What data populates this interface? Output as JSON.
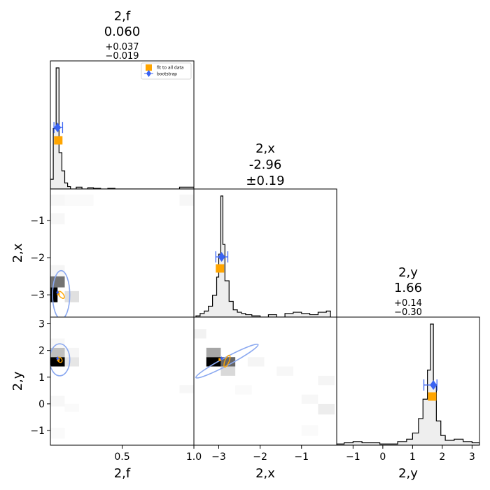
{
  "chart_data": {
    "type": "corner",
    "parameters": [
      "2,f",
      "2,x",
      "2,y"
    ],
    "ranges": {
      "2,f": [
        0.0,
        1.0
      ],
      "2,x": [
        -3.6,
        -0.15
      ],
      "2,y": [
        -1.55,
        3.25
      ]
    },
    "ticks": {
      "2,f": [
        "0.5",
        "1.0"
      ],
      "2,x": [
        "−3",
        "−2",
        "−1"
      ],
      "2,y": [
        "−1",
        "0",
        "1",
        "2",
        "3"
      ]
    },
    "marginal_titles": [
      {
        "param": "2,f",
        "name": "2,f",
        "value": "0.060",
        "plus": "+0.037",
        "minus": "−0.019"
      },
      {
        "param": "2,x",
        "name": "2,x",
        "value": "-2.96",
        "sym": "±0.19"
      },
      {
        "param": "2,y",
        "name": "2,y",
        "value": "1.66",
        "plus": "+0.14",
        "minus": "−0.30"
      }
    ],
    "legend": {
      "placement": "top-right of top-left panel",
      "entries": [
        "fit to all data",
        "bootstrap"
      ]
    },
    "colors": {
      "fit": "#FFA500",
      "bootstrap": "#3A63F2",
      "ellipse": "#8AA8F0",
      "hist_fill": "#EEEEEE"
    },
    "fit_point": {
      "2,f": 0.055,
      "2,x": -2.97,
      "2,y": 1.66
    },
    "bootstrap_point": {
      "2,f": 0.05,
      "2,x": -2.93,
      "2,y": 1.7
    },
    "bootstrap_err": {
      "2,f": [
        0.025,
        0.085
      ],
      "2,x": [
        -3.07,
        -2.78
      ],
      "2,y": [
        1.38,
        1.82
      ]
    },
    "marginals": {
      "2,f": {
        "bins": [
          0.0,
          0.02,
          0.04,
          0.06,
          0.08,
          0.1,
          0.12,
          0.14,
          0.18,
          0.22,
          0.26,
          0.3,
          0.35,
          0.4,
          0.45,
          0.5,
          0.9,
          1.0
        ],
        "counts": [
          0.08,
          0.5,
          1.0,
          0.3,
          0.15,
          0.05,
          0.02,
          0.0,
          0.015,
          0.0,
          0.01,
          0.005,
          0.0,
          0.005,
          0.0,
          0.0,
          0.015
        ]
      },
      "2,x": {
        "bins": [
          -3.55,
          -3.45,
          -3.35,
          -3.25,
          -3.15,
          -3.05,
          -3.0,
          -2.95,
          -2.9,
          -2.85,
          -2.75,
          -2.65,
          -2.55,
          -2.45,
          -2.35,
          -2.2,
          -2.0,
          -1.8,
          -1.6,
          -1.4,
          -1.2,
          -1.0,
          -0.8,
          -0.6,
          -0.4,
          -0.3
        ],
        "counts": [
          0.01,
          0.03,
          0.05,
          0.09,
          0.18,
          0.33,
          0.52,
          1.0,
          0.6,
          0.3,
          0.13,
          0.06,
          0.04,
          0.03,
          0.02,
          0.01,
          0.0,
          0.02,
          0.0,
          0.03,
          0.04,
          0.03,
          0.02,
          0.04,
          0.05
        ]
      },
      "2,y": {
        "bins": [
          -1.55,
          -1.3,
          -1.0,
          -0.7,
          -0.4,
          -0.1,
          0.2,
          0.5,
          0.8,
          1.0,
          1.2,
          1.35,
          1.5,
          1.6,
          1.7,
          1.8,
          1.95,
          2.1,
          2.4,
          2.7,
          3.0,
          3.25
        ],
        "counts": [
          0.01,
          0.02,
          0.03,
          0.02,
          0.02,
          0.01,
          0.01,
          0.03,
          0.05,
          0.1,
          0.22,
          0.38,
          0.62,
          1.0,
          0.5,
          0.2,
          0.08,
          0.04,
          0.05,
          0.03,
          0.02
        ]
      }
    },
    "joint": {
      "2,f|2,x": [
        {
          "x": [
            0.0,
            0.05
          ],
          "y": [
            -3.2,
            -2.8
          ],
          "w": 1.0
        },
        {
          "x": [
            0.0,
            0.1
          ],
          "y": [
            -2.8,
            -2.5
          ],
          "w": 0.55
        },
        {
          "x": [
            0.1,
            0.2
          ],
          "y": [
            -3.2,
            -2.9
          ],
          "w": 0.12
        },
        {
          "x": [
            0.0,
            0.1
          ],
          "y": [
            -2.5,
            -2.2
          ],
          "w": 0.04
        },
        {
          "x": [
            0.0,
            0.1
          ],
          "y": [
            -1.1,
            -0.8
          ],
          "w": 0.03
        },
        {
          "x": [
            0.0,
            0.1
          ],
          "y": [
            -0.6,
            -0.3
          ],
          "w": 0.03
        },
        {
          "x": [
            0.1,
            0.3
          ],
          "y": [
            -0.6,
            -0.3
          ],
          "w": 0.02
        },
        {
          "x": [
            0.9,
            1.0
          ],
          "y": [
            -0.6,
            -0.3
          ],
          "w": 0.03
        }
      ],
      "2,f|2,y": [
        {
          "x": [
            0.0,
            0.1
          ],
          "y": [
            1.4,
            1.75
          ],
          "w": 1.0
        },
        {
          "x": [
            0.0,
            0.1
          ],
          "y": [
            1.75,
            2.1
          ],
          "w": 0.25
        },
        {
          "x": [
            0.1,
            0.2
          ],
          "y": [
            1.4,
            1.75
          ],
          "w": 0.1
        },
        {
          "x": [
            0.1,
            0.2
          ],
          "y": [
            1.75,
            2.1
          ],
          "w": 0.04
        },
        {
          "x": [
            0.0,
            0.1
          ],
          "y": [
            2.1,
            2.45
          ],
          "w": 0.03
        },
        {
          "x": [
            0.0,
            0.1
          ],
          "y": [
            -0.1,
            0.3
          ],
          "w": 0.03
        },
        {
          "x": [
            0.1,
            0.2
          ],
          "y": [
            -0.3,
            0.0
          ],
          "w": 0.02
        },
        {
          "x": [
            0.0,
            0.1
          ],
          "y": [
            -1.3,
            -0.9
          ],
          "w": 0.02
        },
        {
          "x": [
            0.9,
            1.0
          ],
          "y": [
            0.4,
            0.7
          ],
          "w": 0.03
        }
      ],
      "2,x|2,y": [
        {
          "x": [
            -3.3,
            -2.95
          ],
          "y": [
            1.4,
            1.75
          ],
          "w": 1.0
        },
        {
          "x": [
            -2.95,
            -2.6
          ],
          "y": [
            1.4,
            1.75
          ],
          "w": 0.6
        },
        {
          "x": [
            -3.3,
            -2.95
          ],
          "y": [
            1.75,
            2.1
          ],
          "w": 0.35
        },
        {
          "x": [
            -2.95,
            -2.6
          ],
          "y": [
            1.05,
            1.4
          ],
          "w": 0.15
        },
        {
          "x": [
            -3.6,
            -3.3
          ],
          "y": [
            2.45,
            2.8
          ],
          "w": 0.05
        },
        {
          "x": [
            -2.3,
            -1.9
          ],
          "y": [
            1.4,
            1.75
          ],
          "w": 0.04
        },
        {
          "x": [
            -1.6,
            -1.2
          ],
          "y": [
            1.05,
            1.4
          ],
          "w": 0.03
        },
        {
          "x": [
            -0.6,
            -0.2
          ],
          "y": [
            0.7,
            1.05
          ],
          "w": 0.04
        },
        {
          "x": [
            -0.6,
            -0.2
          ],
          "y": [
            -0.4,
            0.0
          ],
          "w": 0.07
        },
        {
          "x": [
            -1.0,
            -0.6
          ],
          "y": [
            0.0,
            0.35
          ],
          "w": 0.03
        },
        {
          "x": [
            -1.0,
            -0.6
          ],
          "y": [
            -1.2,
            -0.8
          ],
          "w": 0.02
        },
        {
          "x": [
            -2.6,
            -2.2
          ],
          "y": [
            0.35,
            0.7
          ],
          "w": 0.02
        }
      ]
    },
    "ellipses": {
      "2,f|2,x": {
        "cx": 0.075,
        "cy": -3.0,
        "rx": 0.06,
        "ry": 0.65,
        "angle_deg": 0
      },
      "2,f|2,y": {
        "cx": 0.065,
        "cy": 1.65,
        "rx": 0.07,
        "ry": 0.6,
        "angle_deg": 0
      },
      "2,x|2,y": {
        "cx": -2.8,
        "cy": 1.6,
        "rx": 0.85,
        "ry": 0.15,
        "angle_deg": -28
      }
    }
  }
}
